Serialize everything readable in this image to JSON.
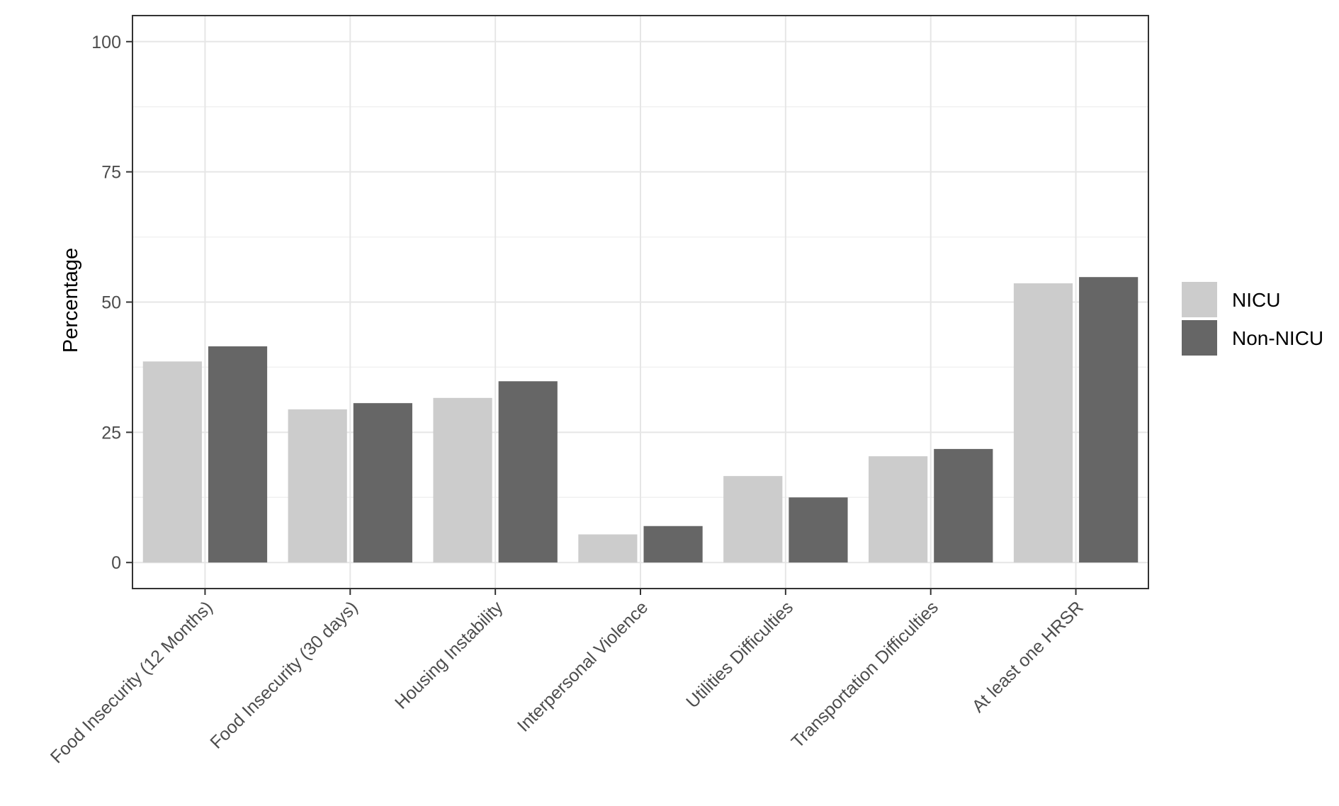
{
  "chart_data": {
    "type": "bar",
    "title": "",
    "xlabel": "",
    "ylabel": "Percentage",
    "ylim": [
      -5,
      105
    ],
    "yticks": [
      0,
      25,
      50,
      75,
      100
    ],
    "grid": true,
    "legend_position": "right",
    "categories": [
      "Food Insecurity (12 Months)",
      "Food Insecurity (30 days)",
      "Housing Instability",
      "Interpersonal Violence",
      "Utilities Difficulties",
      "Transportation Difficulties",
      "At least one HRSR"
    ],
    "series": [
      {
        "name": "NICU",
        "color": "#cccccc",
        "values": [
          38.6,
          29.4,
          31.6,
          5.4,
          16.6,
          20.4,
          53.6
        ]
      },
      {
        "name": "Non-NICU",
        "color": "#666666",
        "values": [
          41.5,
          30.6,
          34.8,
          7.0,
          12.5,
          21.8,
          54.8
        ]
      }
    ]
  }
}
